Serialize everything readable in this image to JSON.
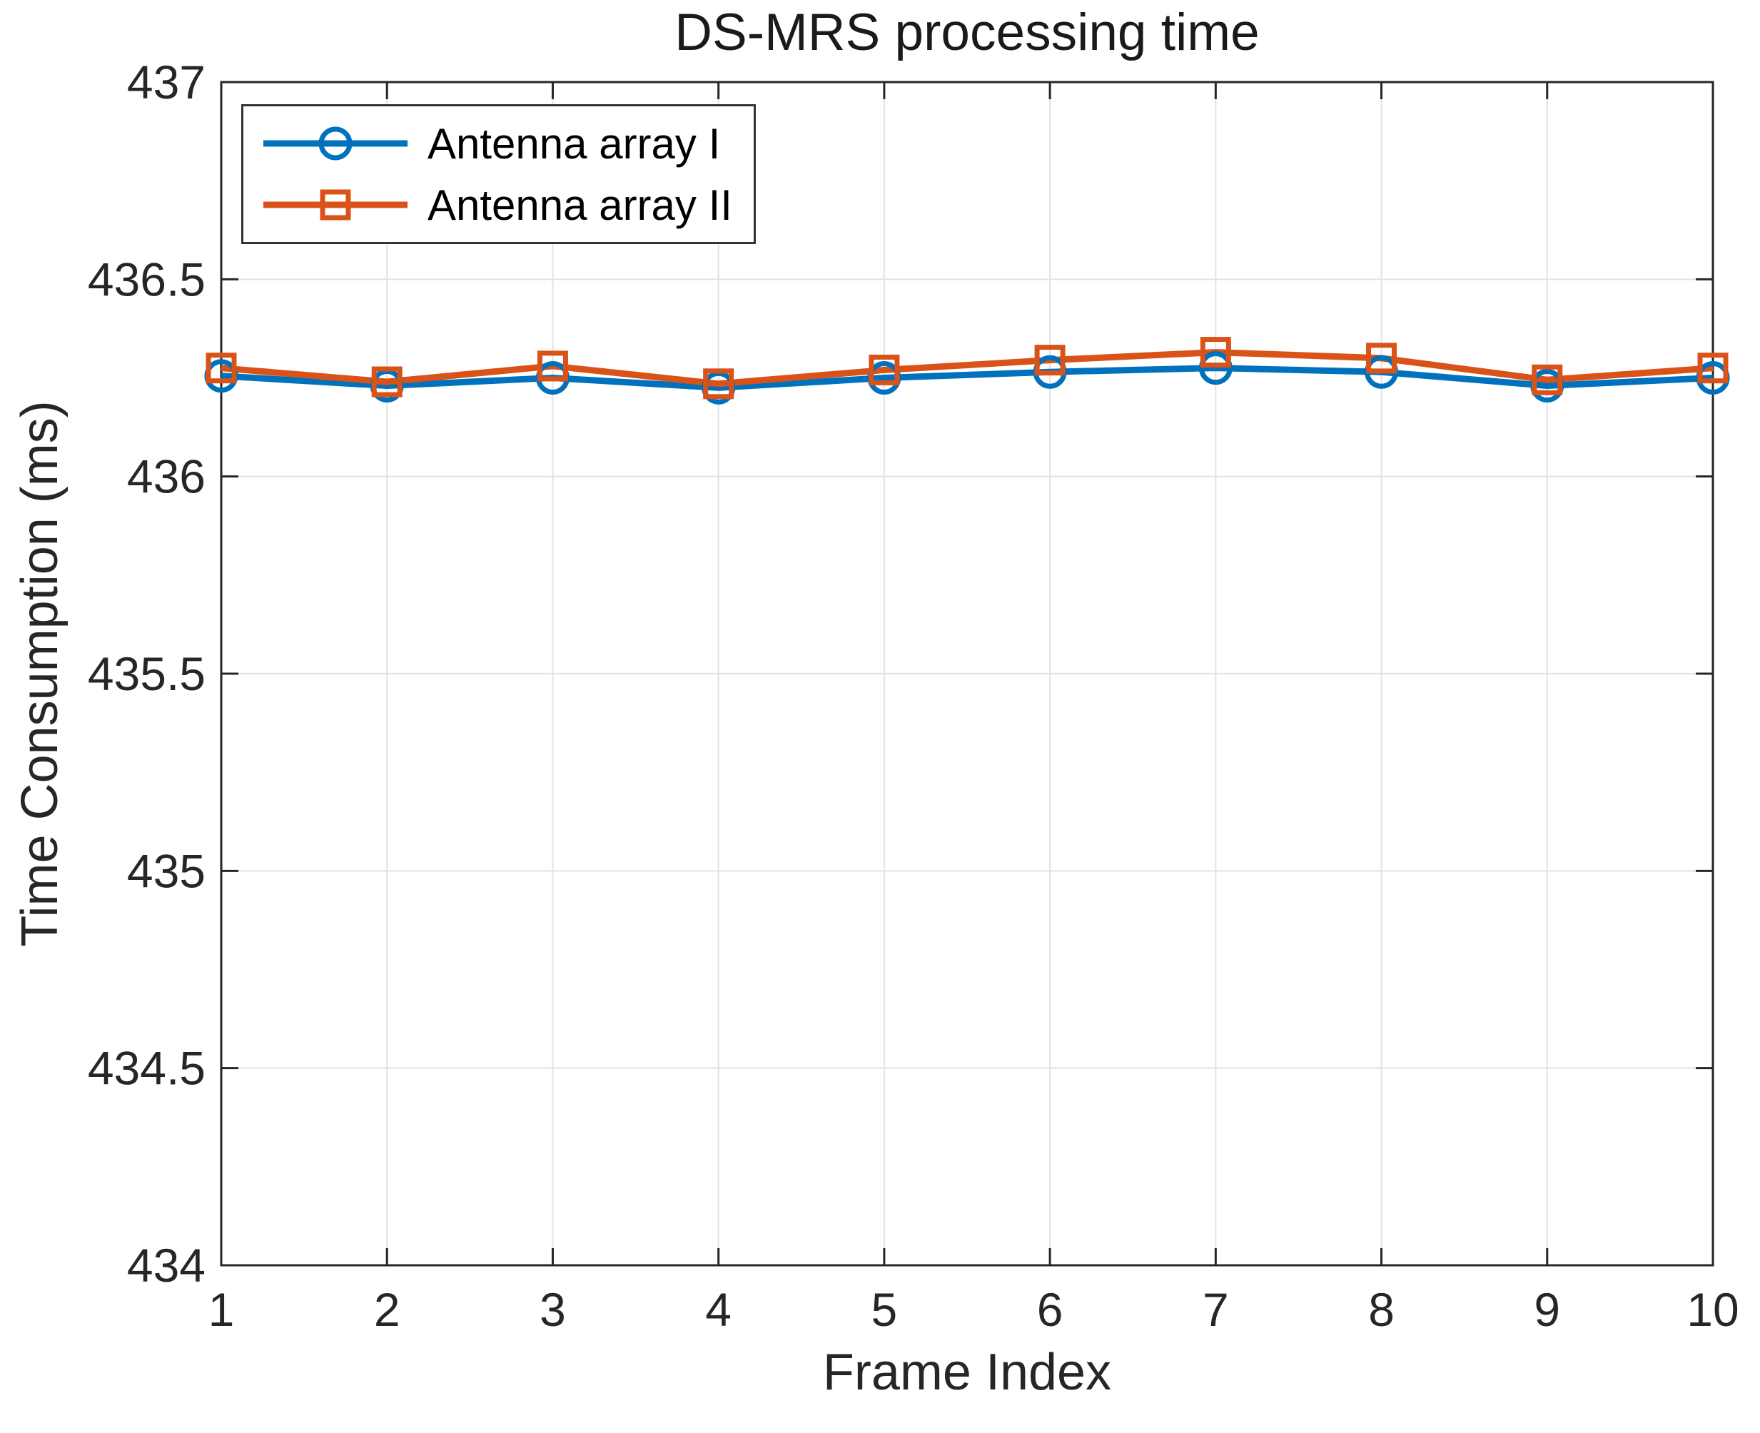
{
  "chart_data": {
    "type": "line",
    "title": "DS-MRS processing time",
    "xlabel": "Frame Index",
    "ylabel": "Time Consumption (ms)",
    "xlim": [
      1,
      10
    ],
    "ylim": [
      434,
      437
    ],
    "xticks": [
      1,
      2,
      3,
      4,
      5,
      6,
      7,
      8,
      9,
      10
    ],
    "xtick_labels": [
      "1",
      "2",
      "3",
      "4",
      "5",
      "6",
      "7",
      "8",
      "9",
      "10"
    ],
    "yticks": [
      434,
      434.5,
      435,
      435.5,
      436,
      436.5,
      437
    ],
    "ytick_labels": [
      "434",
      "434.5",
      "435",
      "435.5",
      "436",
      "436.5",
      "437"
    ],
    "grid": true,
    "legend_position": "top-left",
    "x": [
      1,
      2,
      3,
      4,
      5,
      6,
      7,
      8,
      9,
      10
    ],
    "series": [
      {
        "name": "Antenna array I",
        "color": "#0072BD",
        "marker": "circle",
        "values": [
          436.255,
          436.23,
          436.25,
          436.225,
          436.25,
          436.265,
          436.275,
          436.265,
          436.23,
          436.25
        ]
      },
      {
        "name": "Antenna array II",
        "color": "#D95319",
        "marker": "square",
        "values": [
          436.275,
          436.24,
          436.28,
          436.235,
          436.27,
          436.295,
          436.315,
          436.3,
          436.245,
          436.275
        ]
      }
    ]
  },
  "style": {
    "axis_color": "#262626",
    "grid_color": "#E2E2E2",
    "background": "#FFFFFF",
    "line_width": 9,
    "marker_stroke": 7,
    "tick_length": 24
  }
}
